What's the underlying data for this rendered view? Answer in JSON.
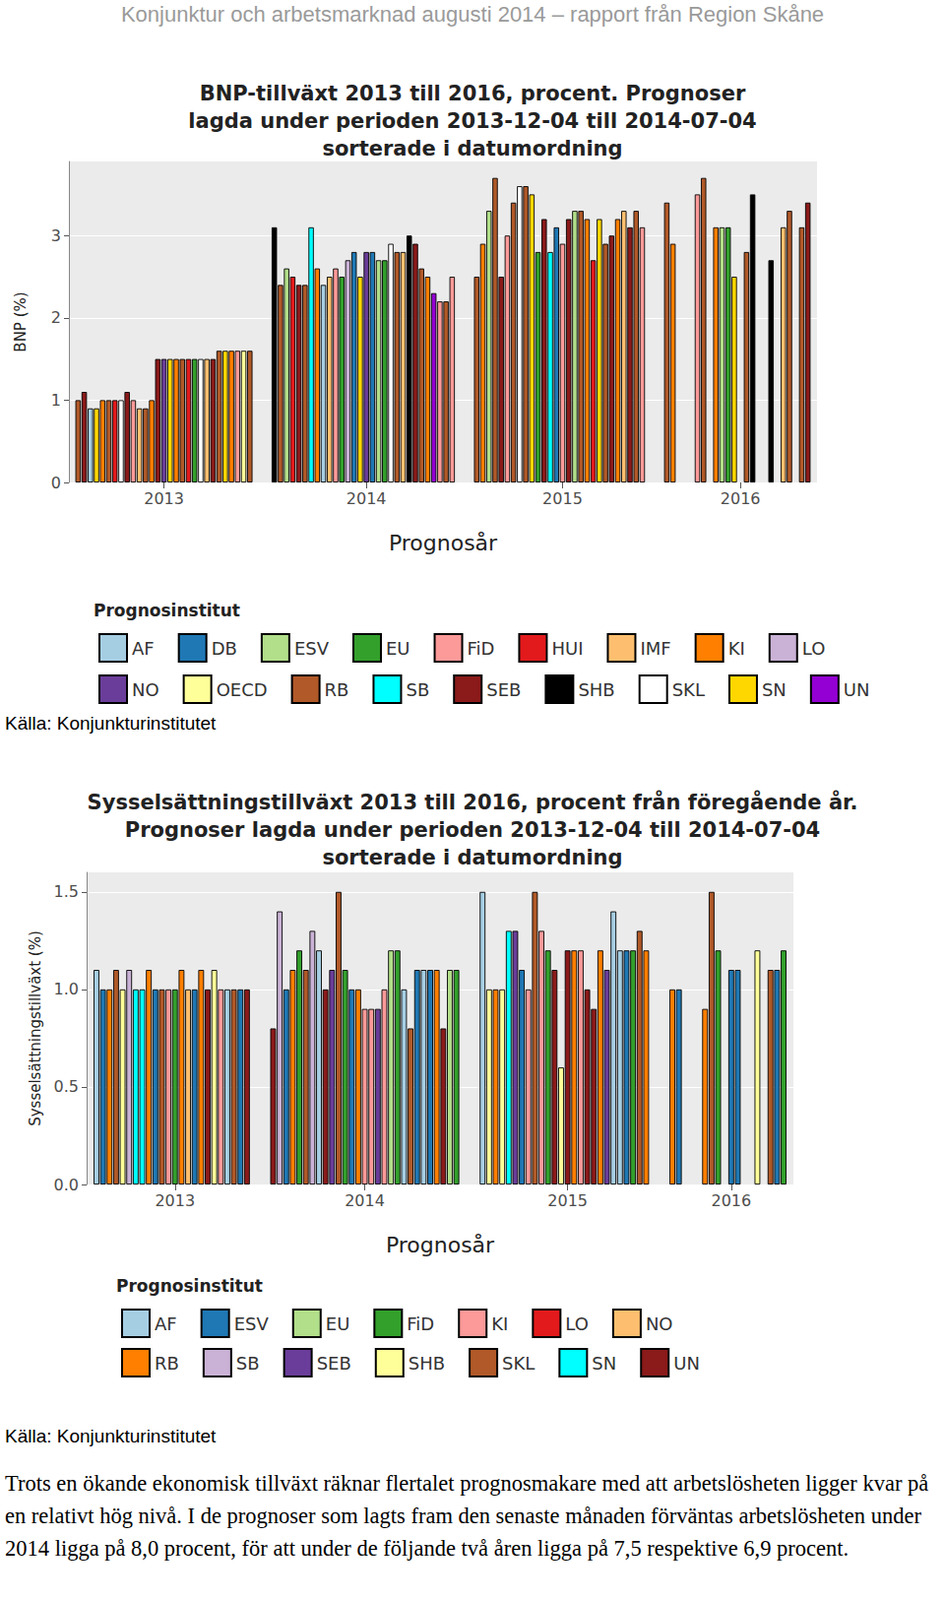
{
  "header": "Konjunktur och arbetsmarknad augusti 2014 – rapport från Region Skåne",
  "chart_data": [
    {
      "type": "bar",
      "title": [
        "BNP-tillväxt 2013 till 2016, procent. Prognoser",
        "lagda under perioden 2013-12-04 till 2014-07-04",
        "sorterade i datumordning"
      ],
      "y_label": "BNP (%)",
      "x_label": "Prognosår",
      "ylim": [
        0,
        3.9
      ],
      "yticks": [
        0,
        1,
        2,
        3
      ],
      "grid": true,
      "legend": "bottom",
      "legend_title": "Prognosinstitut",
      "institutes": [
        {
          "name": "AF",
          "color": "#a6cee3"
        },
        {
          "name": "DB",
          "color": "#1f78b4"
        },
        {
          "name": "ESV",
          "color": "#b2df8a"
        },
        {
          "name": "EU",
          "color": "#33a02c"
        },
        {
          "name": "FiD",
          "color": "#fb9a99"
        },
        {
          "name": "HUI",
          "color": "#e31a1c"
        },
        {
          "name": "IMF",
          "color": "#fdbf6f"
        },
        {
          "name": "KI",
          "color": "#ff7f00"
        },
        {
          "name": "LO",
          "color": "#cab2d6"
        },
        {
          "name": "NO",
          "color": "#6a3d9a"
        },
        {
          "name": "OECD",
          "color": "#ffff99"
        },
        {
          "name": "RB",
          "color": "#b15928"
        },
        {
          "name": "SB",
          "color": "#00ffff"
        },
        {
          "name": "SEB",
          "color": "#8b1a1a"
        },
        {
          "name": "SHB",
          "color": "#000000"
        },
        {
          "name": "SKL",
          "color": "#ffffff"
        },
        {
          "name": "SN",
          "color": "#ffd700"
        },
        {
          "name": "UN",
          "color": "#9400d3"
        }
      ],
      "groups": [
        {
          "year": 2013,
          "bars": [
            [
              "RB",
              1.0
            ],
            [
              "SEB",
              1.1
            ],
            [
              "AF",
              0.9
            ],
            [
              "SN",
              0.9
            ],
            [
              "KI",
              1.0
            ],
            [
              "RB",
              1.0
            ],
            [
              "HUI",
              1.0
            ],
            [
              "SKL",
              1.0
            ],
            [
              "SEB",
              1.1
            ],
            [
              "FiD",
              1.0
            ],
            [
              "IMF",
              0.9
            ],
            [
              "RB",
              0.9
            ],
            [
              "KI",
              1.0
            ],
            [
              "SEB",
              1.5
            ],
            [
              "NO",
              1.5
            ],
            [
              "SN",
              1.5
            ],
            [
              "KI",
              1.5
            ],
            [
              "RB",
              1.5
            ],
            [
              "HUI",
              1.5
            ],
            [
              "EU",
              1.5
            ],
            [
              "SKL",
              1.5
            ],
            [
              "IMF",
              1.5
            ],
            [
              "SEB",
              1.5
            ],
            [
              "RB",
              1.6
            ],
            [
              "SN",
              1.6
            ],
            [
              "KI",
              1.6
            ],
            [
              "FiD",
              1.6
            ],
            [
              "OECD",
              1.6
            ],
            [
              "RB",
              1.6
            ]
          ]
        },
        {
          "year": 2014,
          "bars": [
            [
              "SHB",
              3.1
            ],
            [
              "RB",
              2.4
            ],
            [
              "ESV",
              2.6
            ],
            [
              "HUI",
              2.5
            ],
            [
              "SEB",
              2.4
            ],
            [
              "RB",
              2.4
            ],
            [
              "SB",
              3.1
            ],
            [
              "KI",
              2.6
            ],
            [
              "AF",
              2.4
            ],
            [
              "IMF",
              2.5
            ],
            [
              "FiD",
              2.6
            ],
            [
              "EU",
              2.5
            ],
            [
              "LO",
              2.7
            ],
            [
              "DB",
              2.8
            ],
            [
              "SN",
              2.5
            ],
            [
              "NO",
              2.8
            ],
            [
              "DB",
              2.8
            ],
            [
              "ESV",
              2.7
            ],
            [
              "EU",
              2.7
            ],
            [
              "SKL",
              2.9
            ],
            [
              "RB",
              2.8
            ],
            [
              "IMF",
              2.8
            ],
            [
              "SHB",
              3.0
            ],
            [
              "SEB",
              2.9
            ],
            [
              "RB",
              2.6
            ],
            [
              "KI",
              2.5
            ],
            [
              "UN",
              2.3
            ],
            [
              "FiD",
              2.2
            ],
            [
              "RB",
              2.2
            ],
            [
              "FiD",
              2.5
            ]
          ]
        },
        {
          "year": 2015,
          "bars": [
            [
              "RB",
              2.5
            ],
            [
              "KI",
              2.9
            ],
            [
              "ESV",
              3.3
            ],
            [
              "RB",
              3.7
            ],
            [
              "SEB",
              2.5
            ],
            [
              "FiD",
              3.0
            ],
            [
              "RB",
              3.4
            ],
            [
              "SKL",
              3.6
            ],
            [
              "RB",
              3.6
            ],
            [
              "SN",
              3.5
            ],
            [
              "EU",
              2.8
            ],
            [
              "SEB",
              3.2
            ],
            [
              "SB",
              2.8
            ],
            [
              "DB",
              3.1
            ],
            [
              "FiD",
              2.9
            ],
            [
              "SEB",
              3.2
            ],
            [
              "ESV",
              3.3
            ],
            [
              "RB",
              3.3
            ],
            [
              "KI",
              3.2
            ],
            [
              "HUI",
              2.7
            ],
            [
              "SN",
              3.2
            ],
            [
              "RB",
              2.9
            ],
            [
              "SEB",
              3.0
            ],
            [
              "KI",
              3.2
            ],
            [
              "IMF",
              3.3
            ],
            [
              "SEB",
              3.1
            ],
            [
              "RB",
              3.3
            ],
            [
              "FiD",
              3.1
            ]
          ]
        },
        {
          "year": 2016,
          "bars": [
            [
              "RB",
              3.4
            ],
            [
              "KI",
              2.9
            ],
            null,
            null,
            null,
            [
              "FiD",
              3.5
            ],
            [
              "RB",
              3.7
            ],
            null,
            [
              "KI",
              3.1
            ],
            [
              "ESV",
              3.1
            ],
            [
              "EU",
              3.1
            ],
            [
              "SN",
              2.5
            ],
            null,
            [
              "RB",
              2.8
            ],
            [
              "SHB",
              3.5
            ],
            null,
            null,
            [
              "SHB",
              2.7
            ],
            null,
            [
              "IMF",
              3.1
            ],
            [
              "RB",
              3.3
            ],
            null,
            [
              "RB",
              3.1
            ],
            [
              "SEB",
              3.4
            ]
          ]
        }
      ],
      "source": "Källa: Konjunkturinstitutet"
    },
    {
      "type": "bar",
      "title": [
        "Sysselsättningstillväxt 2013 till 2016, procent från föregående år.",
        "Prognoser lagda under perioden 2013-12-04 till 2014-07-04",
        "sorterade i datumordning"
      ],
      "y_label": "Sysselsättningstillväxt (%)",
      "x_label": "Prognosår",
      "ylim": [
        0,
        1.6
      ],
      "yticks": [
        {
          "value": 0,
          "label": "0.0"
        },
        {
          "value": 0.5,
          "label": "0.5"
        },
        {
          "value": 1,
          "label": "1.0"
        },
        {
          "value": 1.5,
          "label": "1.5"
        }
      ],
      "grid": true,
      "legend": "bottom",
      "legend_title": "Prognosinstitut",
      "institutes": [
        {
          "name": "AF",
          "color": "#a6cee3"
        },
        {
          "name": "ESV",
          "color": "#1f78b4"
        },
        {
          "name": "EU",
          "color": "#b2df8a"
        },
        {
          "name": "FiD",
          "color": "#33a02c"
        },
        {
          "name": "KI",
          "color": "#fb9a99"
        },
        {
          "name": "LO",
          "color": "#e31a1c"
        },
        {
          "name": "NO",
          "color": "#fdbf6f"
        },
        {
          "name": "RB",
          "color": "#ff7f00"
        },
        {
          "name": "SB",
          "color": "#cab2d6"
        },
        {
          "name": "SEB",
          "color": "#6a3d9a"
        },
        {
          "name": "SHB",
          "color": "#ffff99"
        },
        {
          "name": "SKL",
          "color": "#b15928"
        },
        {
          "name": "SN",
          "color": "#00ffff"
        },
        {
          "name": "UN",
          "color": "#8b1a1a"
        }
      ],
      "groups": [
        {
          "year": 2013,
          "bars": [
            [
              "AF",
              1.1
            ],
            [
              "ESV",
              1.0
            ],
            [
              "RB",
              1.0
            ],
            [
              "SKL",
              1.1
            ],
            [
              "SHB",
              1.0
            ],
            [
              "SB",
              1.1
            ],
            [
              "SN",
              1.0
            ],
            [
              "SN",
              1.0
            ],
            [
              "RB",
              1.1
            ],
            [
              "ESV",
              1.0
            ],
            [
              "SKL",
              1.0
            ],
            [
              "KI",
              1.0
            ],
            [
              "FiD",
              1.0
            ],
            [
              "RB",
              1.1
            ],
            [
              "NO",
              1.0
            ],
            [
              "ESV",
              1.0
            ],
            [
              "RB",
              1.1
            ],
            [
              "UN",
              1.0
            ],
            [
              "SHB",
              1.1
            ],
            [
              "KI",
              1.0
            ],
            [
              "AF",
              1.0
            ],
            [
              "SKL",
              1.0
            ],
            [
              "ESV",
              1.0
            ],
            [
              "UN",
              1.0
            ]
          ]
        },
        {
          "year": 2014,
          "bars": [
            [
              "UN",
              0.8
            ],
            [
              "SB",
              1.4
            ],
            [
              "ESV",
              1.0
            ],
            [
              "RB",
              1.1
            ],
            [
              "FiD",
              1.2
            ],
            [
              "SKL",
              1.1
            ],
            [
              "SB",
              1.3
            ],
            [
              "AF",
              1.2
            ],
            [
              "UN",
              1.0
            ],
            [
              "SEB",
              1.1
            ],
            [
              "SKL",
              1.5
            ],
            [
              "FiD",
              1.1
            ],
            [
              "ESV",
              1.0
            ],
            [
              "RB",
              1.0
            ],
            [
              "KI",
              0.9
            ],
            [
              "KI",
              0.9
            ],
            [
              "SEB",
              0.9
            ],
            [
              "KI",
              1.0
            ],
            [
              "EU",
              1.2
            ],
            [
              "FiD",
              1.2
            ],
            [
              "AF",
              1.0
            ],
            [
              "SKL",
              0.8
            ],
            [
              "ESV",
              1.1
            ],
            [
              "AF",
              1.1
            ],
            [
              "ESV",
              1.1
            ],
            [
              "RB",
              1.1
            ],
            [
              "UN",
              0.8
            ],
            [
              "EU",
              1.1
            ],
            [
              "FiD",
              1.1
            ]
          ]
        },
        {
          "year": 2015,
          "bars": [
            [
              "AF",
              1.5
            ],
            [
              "SHB",
              1.0
            ],
            [
              "RB",
              1.0
            ],
            [
              "SHB",
              1.0
            ],
            [
              "SN",
              1.3
            ],
            [
              "SEB",
              1.3
            ],
            [
              "ESV",
              1.1
            ],
            [
              "KI",
              1.0
            ],
            [
              "SKL",
              1.5
            ],
            [
              "KI",
              1.3
            ],
            [
              "FiD",
              1.2
            ],
            [
              "UN",
              1.1
            ],
            [
              "SHB",
              0.6
            ],
            [
              "UN",
              1.2
            ],
            [
              "RB",
              1.2
            ],
            [
              "KI",
              1.2
            ],
            [
              "UN",
              1.0
            ],
            [
              "UN",
              0.9
            ],
            [
              "RB",
              1.2
            ],
            [
              "SEB",
              1.1
            ],
            [
              "AF",
              1.4
            ],
            [
              "AF",
              1.2
            ],
            [
              "ESV",
              1.2
            ],
            [
              "FiD",
              1.2
            ],
            [
              "SKL",
              1.3
            ],
            [
              "RB",
              1.2
            ]
          ]
        },
        {
          "year": 2016,
          "bars": [
            [
              "RB",
              1.0
            ],
            [
              "ESV",
              1.0
            ],
            null,
            null,
            null,
            [
              "RB",
              0.9
            ],
            [
              "SKL",
              1.5
            ],
            [
              "FiD",
              1.2
            ],
            null,
            [
              "ESV",
              1.1
            ],
            [
              "ESV",
              1.1
            ],
            null,
            null,
            [
              "SHB",
              1.2
            ],
            null,
            [
              "SKL",
              1.1
            ],
            [
              "ESV",
              1.1
            ],
            [
              "FiD",
              1.2
            ]
          ]
        }
      ],
      "source": "Källa: Konjunkturinstitutet"
    }
  ],
  "paragraph": "Trots en ökande ekonomisk tillväxt räknar flertalet prognosmakare med att arbetslösheten ligger kvar på en relativt hög nivå. I de prognoser som lagts fram den senaste månaden förväntas arbetslösheten under 2014 ligga på 8,0 procent, för att under de följande två åren ligga på 7,5 respektive 6,9 procent."
}
